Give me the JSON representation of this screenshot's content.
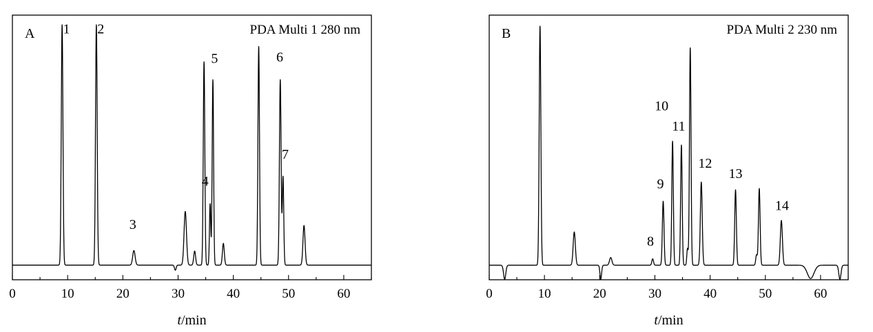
{
  "chart_data": [
    {
      "type": "line",
      "panel_label": "A",
      "annotation": "PDA Multi 1 280 nm",
      "xlabel_italic": "t",
      "xlabel_rest": "/min",
      "xlim": [
        0,
        65
      ],
      "ylim": [
        0,
        100
      ],
      "xticks": [
        0,
        10,
        20,
        30,
        40,
        50,
        60
      ],
      "baseline": 6,
      "grid": false,
      "peaks": [
        {
          "x": 9.0,
          "h": 100,
          "w": 0.15
        },
        {
          "x": 15.2,
          "h": 100,
          "w": 0.15
        },
        {
          "x": 22.0,
          "h": 11.7,
          "w": 0.22
        },
        {
          "x": 29.5,
          "h": 4.0,
          "w": 0.15
        },
        {
          "x": 31.3,
          "h": 27.0,
          "w": 0.22
        },
        {
          "x": 33.0,
          "h": 11.5,
          "w": 0.17
        },
        {
          "x": 34.7,
          "h": 85.5,
          "w": 0.14
        },
        {
          "x": 35.8,
          "h": 30.0,
          "w": 0.12
        },
        {
          "x": 36.3,
          "h": 78.5,
          "w": 0.13
        },
        {
          "x": 38.2,
          "h": 14.5,
          "w": 0.17
        },
        {
          "x": 44.6,
          "h": 91.5,
          "w": 0.14
        },
        {
          "x": 48.5,
          "h": 78.5,
          "w": 0.15
        },
        {
          "x": 49.0,
          "h": 40.5,
          "w": 0.13
        },
        {
          "x": 52.8,
          "h": 21.5,
          "w": 0.19
        }
      ],
      "peak_labels": [
        {
          "text": "1",
          "x": 9.8,
          "y": 98.5
        },
        {
          "text": "2",
          "x": 16.0,
          "y": 98.5
        },
        {
          "text": "3",
          "x": 21.8,
          "y": 22
        },
        {
          "text": "4",
          "x": 34.9,
          "y": 39
        },
        {
          "text": "5",
          "x": 36.6,
          "y": 87
        },
        {
          "text": "6",
          "x": 48.4,
          "y": 87.5
        },
        {
          "text": "7",
          "x": 49.4,
          "y": 49.5
        }
      ]
    },
    {
      "type": "line",
      "panel_label": "B",
      "annotation": "PDA Multi 2 230 nm",
      "xlabel_italic": "t",
      "xlabel_rest": "/min",
      "xlim": [
        0,
        65
      ],
      "ylim": [
        0,
        100
      ],
      "xticks": [
        0,
        10,
        20,
        30,
        40,
        50,
        60
      ],
      "baseline": 6.5,
      "grid": false,
      "peaks": [
        {
          "x": 2.8,
          "h": 1.0,
          "w": 0.2
        },
        {
          "x": 9.2,
          "h": 100,
          "w": 0.15
        },
        {
          "x": 15.4,
          "h": 19.5,
          "w": 0.2
        },
        {
          "x": 20.2,
          "h": 1.0,
          "w": 0.15
        },
        {
          "x": 22.0,
          "h": 9.5,
          "w": 0.22
        },
        {
          "x": 29.6,
          "h": 9.0,
          "w": 0.15
        },
        {
          "x": 31.5,
          "h": 31.5,
          "w": 0.15
        },
        {
          "x": 33.2,
          "h": 55.0,
          "w": 0.14
        },
        {
          "x": 34.8,
          "h": 53.5,
          "w": 0.14
        },
        {
          "x": 35.9,
          "h": 13.0,
          "w": 0.12
        },
        {
          "x": 36.4,
          "h": 91.5,
          "w": 0.14
        },
        {
          "x": 38.4,
          "h": 39.0,
          "w": 0.17
        },
        {
          "x": 44.6,
          "h": 36.0,
          "w": 0.15
        },
        {
          "x": 48.4,
          "h": 10.5,
          "w": 0.14
        },
        {
          "x": 48.9,
          "h": 36.5,
          "w": 0.15
        },
        {
          "x": 52.9,
          "h": 24.0,
          "w": 0.19
        },
        {
          "x": 58.2,
          "h": 1.3,
          "w": 0.6
        },
        {
          "x": 63.5,
          "h": 1.0,
          "w": 0.2
        }
      ],
      "peak_labels": [
        {
          "text": "8",
          "x": 29.2,
          "y": 16
        },
        {
          "text": "9",
          "x": 31.0,
          "y": 38.5
        },
        {
          "text": "10",
          "x": 31.2,
          "y": 69
        },
        {
          "text": "11",
          "x": 34.3,
          "y": 61
        },
        {
          "text": "12",
          "x": 39.1,
          "y": 46.5
        },
        {
          "text": "13",
          "x": 44.6,
          "y": 42.5
        },
        {
          "text": "14",
          "x": 53.0,
          "y": 30
        }
      ]
    }
  ]
}
